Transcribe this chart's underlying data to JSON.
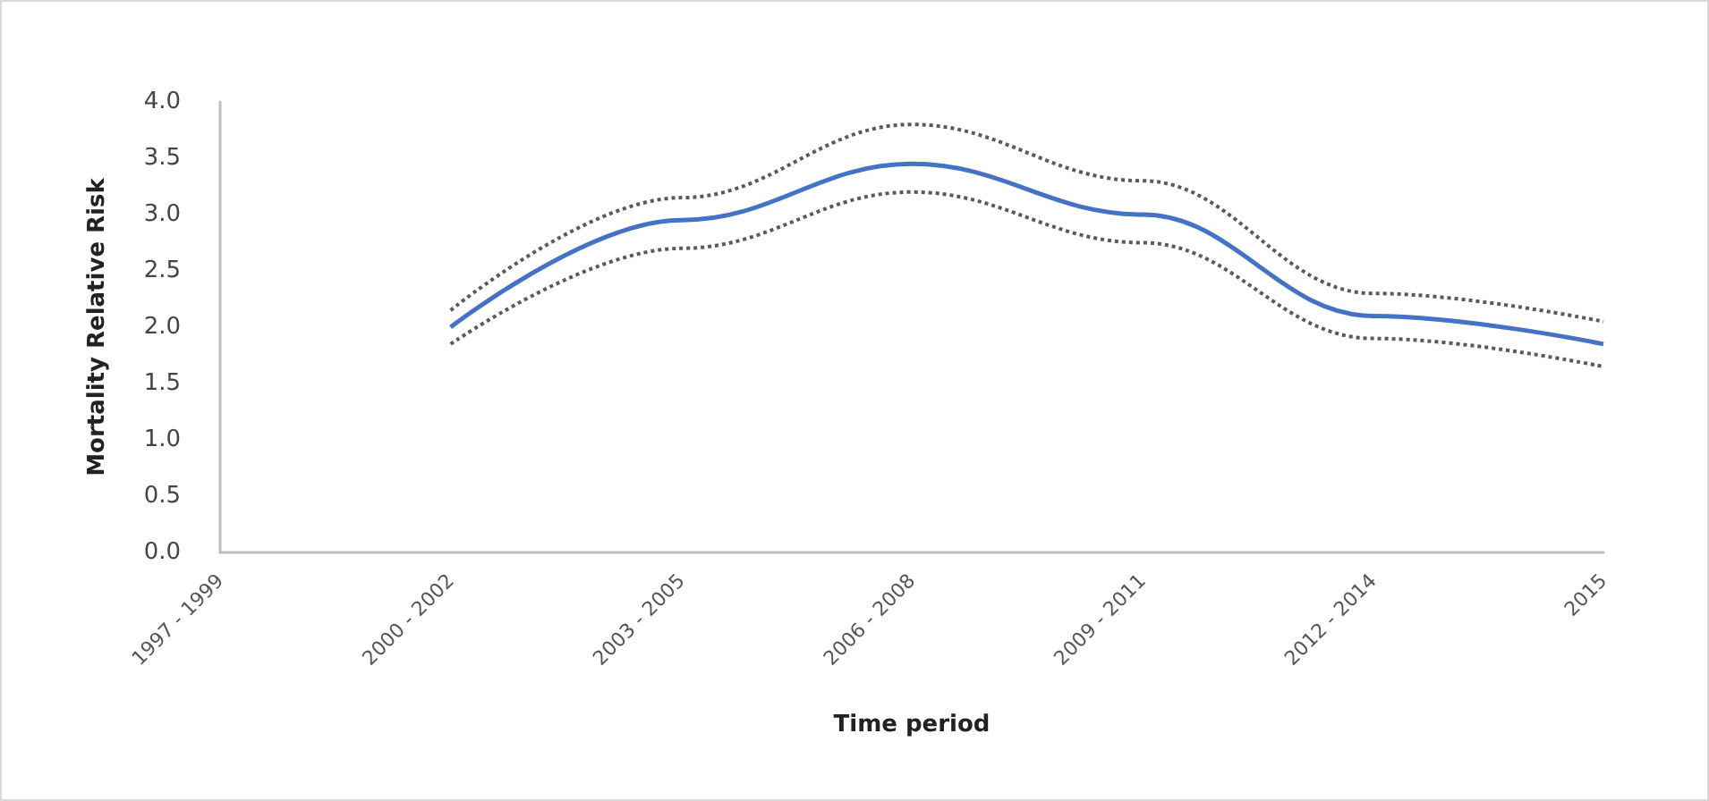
{
  "chart_data": {
    "type": "line",
    "xlabel": "Time period",
    "ylabel": "Mortality Relative Risk",
    "categories": [
      "1997 - 1999",
      "2000 - 2002",
      "2003 - 2005",
      "2006 - 2008",
      "2009 - 2011",
      "2012 - 2014",
      "2015"
    ],
    "series": [
      {
        "color": "#5a5a5a",
        "line_style": "dotted",
        "values": [
          null,
          2.15,
          3.15,
          3.8,
          3.3,
          2.3,
          2.05
        ]
      },
      {
        "color": "#5a5a5a",
        "line_style": "dotted",
        "values": [
          null,
          1.85,
          2.7,
          3.2,
          2.75,
          1.9,
          1.65
        ]
      },
      {
        "color": "#4472c4",
        "line_style": "solid",
        "values": [
          null,
          2.0,
          2.95,
          3.45,
          3.0,
          2.1,
          1.85
        ]
      }
    ],
    "ylim": [
      0,
      4
    ],
    "yticks": [
      {
        "value": 0,
        "label": "0.0"
      },
      0.5,
      {
        "value": 1,
        "label": "1.0"
      },
      1.5,
      {
        "value": 2,
        "label": "2.0"
      },
      2.5,
      {
        "value": 3,
        "label": "3.0"
      },
      3.5,
      {
        "value": 4,
        "label": "4.0"
      }
    ],
    "grid": false,
    "marker": "none"
  }
}
